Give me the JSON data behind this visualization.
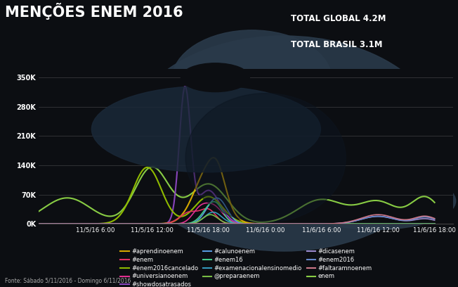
{
  "title": "MENÇÕES ENEM 2016",
  "subtitle_line1": "TOTAL GLOBAL 4.2M",
  "subtitle_line2": "TOTAL BRASIL 3.1M",
  "footnote": "Fonte: Sábado 5/11/2016 - Domingo 6/11/2016",
  "bg_color": "#0c0e12",
  "plot_bg_color": "#0c0e12",
  "yticks": [
    0,
    70000,
    140000,
    210000,
    280000,
    350000
  ],
  "ytick_labels": [
    "0K",
    "70K",
    "140K",
    "210K",
    "280K",
    "350K"
  ],
  "xtick_labels": [
    "11/5/16 6:00",
    "11/5/16 12:00",
    "11/5/16 18:00",
    "11/6/16 0:00",
    "11/6/16 6:00",
    "11/6/16 12:00",
    "11/6/16 18:00"
  ],
  "legend_entries": [
    {
      "label": "#aprendinoenem",
      "color": "#d4a800"
    },
    {
      "label": "#enem",
      "color": "#e03060"
    },
    {
      "label": "#enem2016cancelado",
      "color": "#8fba00"
    },
    {
      "label": "#universianoenem",
      "color": "#e03090"
    },
    {
      "label": "#showdosatrasados",
      "color": "#8844bb"
    },
    {
      "label": "#calunoenem",
      "color": "#5599dd"
    },
    {
      "label": "#enem16",
      "color": "#44cc88"
    },
    {
      "label": "#examenacionalensinomedio",
      "color": "#3399bb"
    },
    {
      "label": "@preparaenem",
      "color": "#77bb44"
    },
    {
      "label": "#dicasenem",
      "color": "#9988cc"
    },
    {
      "label": "#enem2016",
      "color": "#6688cc"
    },
    {
      "label": "#faltaramnoenem",
      "color": "#cc7788"
    },
    {
      "label": "enem",
      "color": "#88cc44"
    }
  ]
}
